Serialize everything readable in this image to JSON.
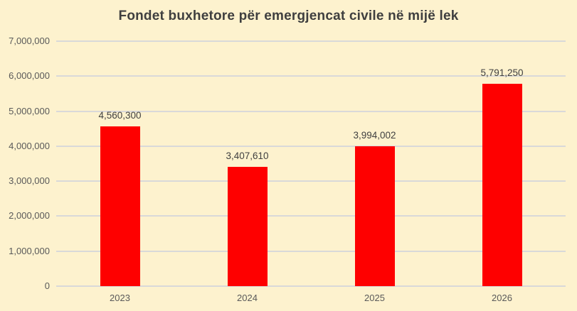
{
  "chart_data": {
    "type": "bar",
    "title": "Fondet buxhetore për emergjencat civile në mijë lek",
    "categories": [
      "2023",
      "2024",
      "2025",
      "2026"
    ],
    "values": [
      4560300,
      3407610,
      3994002,
      5791250
    ],
    "value_labels": [
      "4,560,300",
      "3,407,610",
      "3,994,002",
      "5,791,250"
    ],
    "xlabel": "",
    "ylabel": "",
    "ylim": [
      0,
      7000000
    ],
    "y_ticks": [
      {
        "value": 0,
        "label": "0"
      },
      {
        "value": 1000000,
        "label": "1,000,000"
      },
      {
        "value": 2000000,
        "label": "2,000,000"
      },
      {
        "value": 3000000,
        "label": "3,000,000"
      },
      {
        "value": 4000000,
        "label": "4,000,000"
      },
      {
        "value": 5000000,
        "label": "5,000,000"
      },
      {
        "value": 6000000,
        "label": "6,000,000"
      },
      {
        "value": 7000000,
        "label": "7,000,000"
      }
    ],
    "grid": "horizontal",
    "legend": "none",
    "colors": {
      "bar": "#FE0000",
      "background": "#FDF2CE",
      "gridline": "#D9D9D9",
      "title_text": "#3F3F3F",
      "axis_text": "#595959",
      "data_label_text": "#404040"
    }
  }
}
